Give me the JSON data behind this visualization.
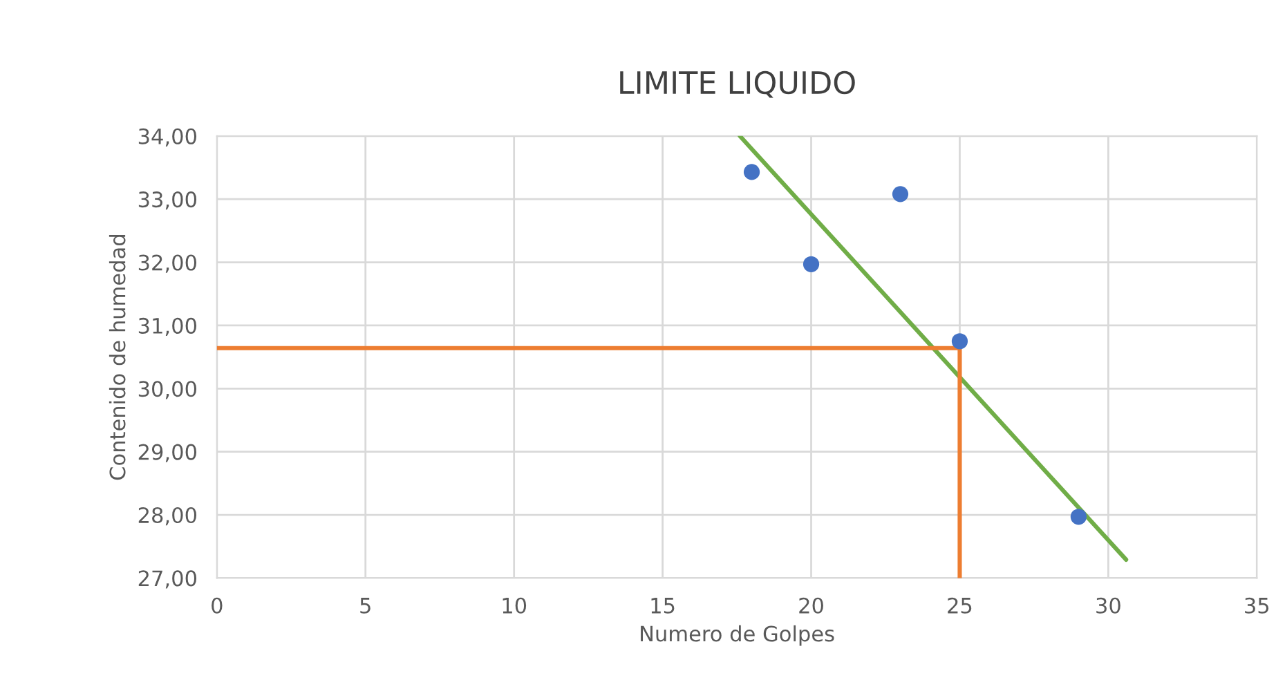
{
  "chart_data": {
    "type": "scatter",
    "title": "LIMITE LIQUIDO",
    "xlabel": "Numero de Golpes",
    "ylabel": "Contenido de humedad",
    "xlim": [
      0,
      35
    ],
    "xticks": [
      0,
      5,
      10,
      15,
      20,
      25,
      30,
      35
    ],
    "ylim": [
      27,
      34
    ],
    "yticks": [
      {
        "value": 27,
        "label": "27,00"
      },
      {
        "value": 28,
        "label": "28,00"
      },
      {
        "value": 29,
        "label": "29,00"
      },
      {
        "value": 30,
        "label": "30,00"
      },
      {
        "value": 31,
        "label": "31,00"
      },
      {
        "value": 32,
        "label": "32,00"
      },
      {
        "value": 33,
        "label": "33,00"
      },
      {
        "value": 34,
        "label": "34,00"
      }
    ],
    "grid": true,
    "marker": "circle",
    "series": [
      {
        "color": "#4472c4",
        "x": [
          18,
          20,
          23,
          25,
          29
        ],
        "values": [
          33.43,
          31.97,
          33.08,
          30.75,
          27.97
        ]
      },
      {
        "type": "line",
        "color": "#70ad47",
        "marker": "none",
        "x": [
          17.6,
          30.6
        ],
        "values": [
          34.0,
          27.29
        ]
      },
      {
        "type": "line",
        "color": "#ed7d31",
        "marker": "none",
        "x": [
          0,
          25,
          25
        ],
        "values": [
          30.64,
          30.64,
          27
        ]
      }
    ]
  }
}
